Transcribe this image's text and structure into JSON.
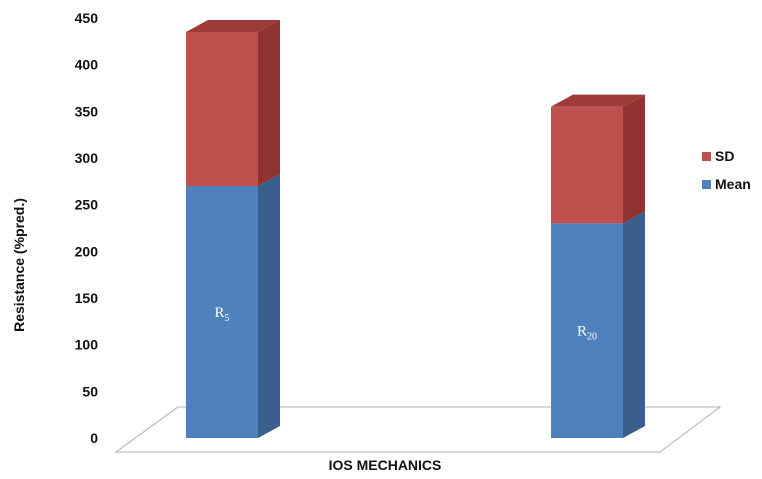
{
  "chart_data": {
    "type": "bar",
    "stacked": true,
    "three_d": true,
    "categories": [
      "R5",
      "R20"
    ],
    "bar_labels": [
      {
        "base": "R",
        "sub": "5"
      },
      {
        "base": "R",
        "sub": "20"
      }
    ],
    "series": [
      {
        "name": "Mean",
        "values": [
          270,
          230
        ],
        "color": "#4f81bd",
        "side_color": "#3a5f8c",
        "top_color": "#6b95c9"
      },
      {
        "name": "SD",
        "values": [
          165,
          125
        ],
        "color": "#c0504d",
        "side_color": "#8e3331",
        "top_color": "#9e3a37"
      }
    ],
    "xlabel": "IOS MECHANICS",
    "ylabel": "Resistance (%pred.)",
    "ylim": [
      0,
      450
    ],
    "yticks": [
      0,
      50,
      100,
      150,
      200,
      250,
      300,
      350,
      400,
      450
    ],
    "legend": {
      "position": "right",
      "order": [
        "SD",
        "Mean"
      ]
    },
    "grid": false
  }
}
